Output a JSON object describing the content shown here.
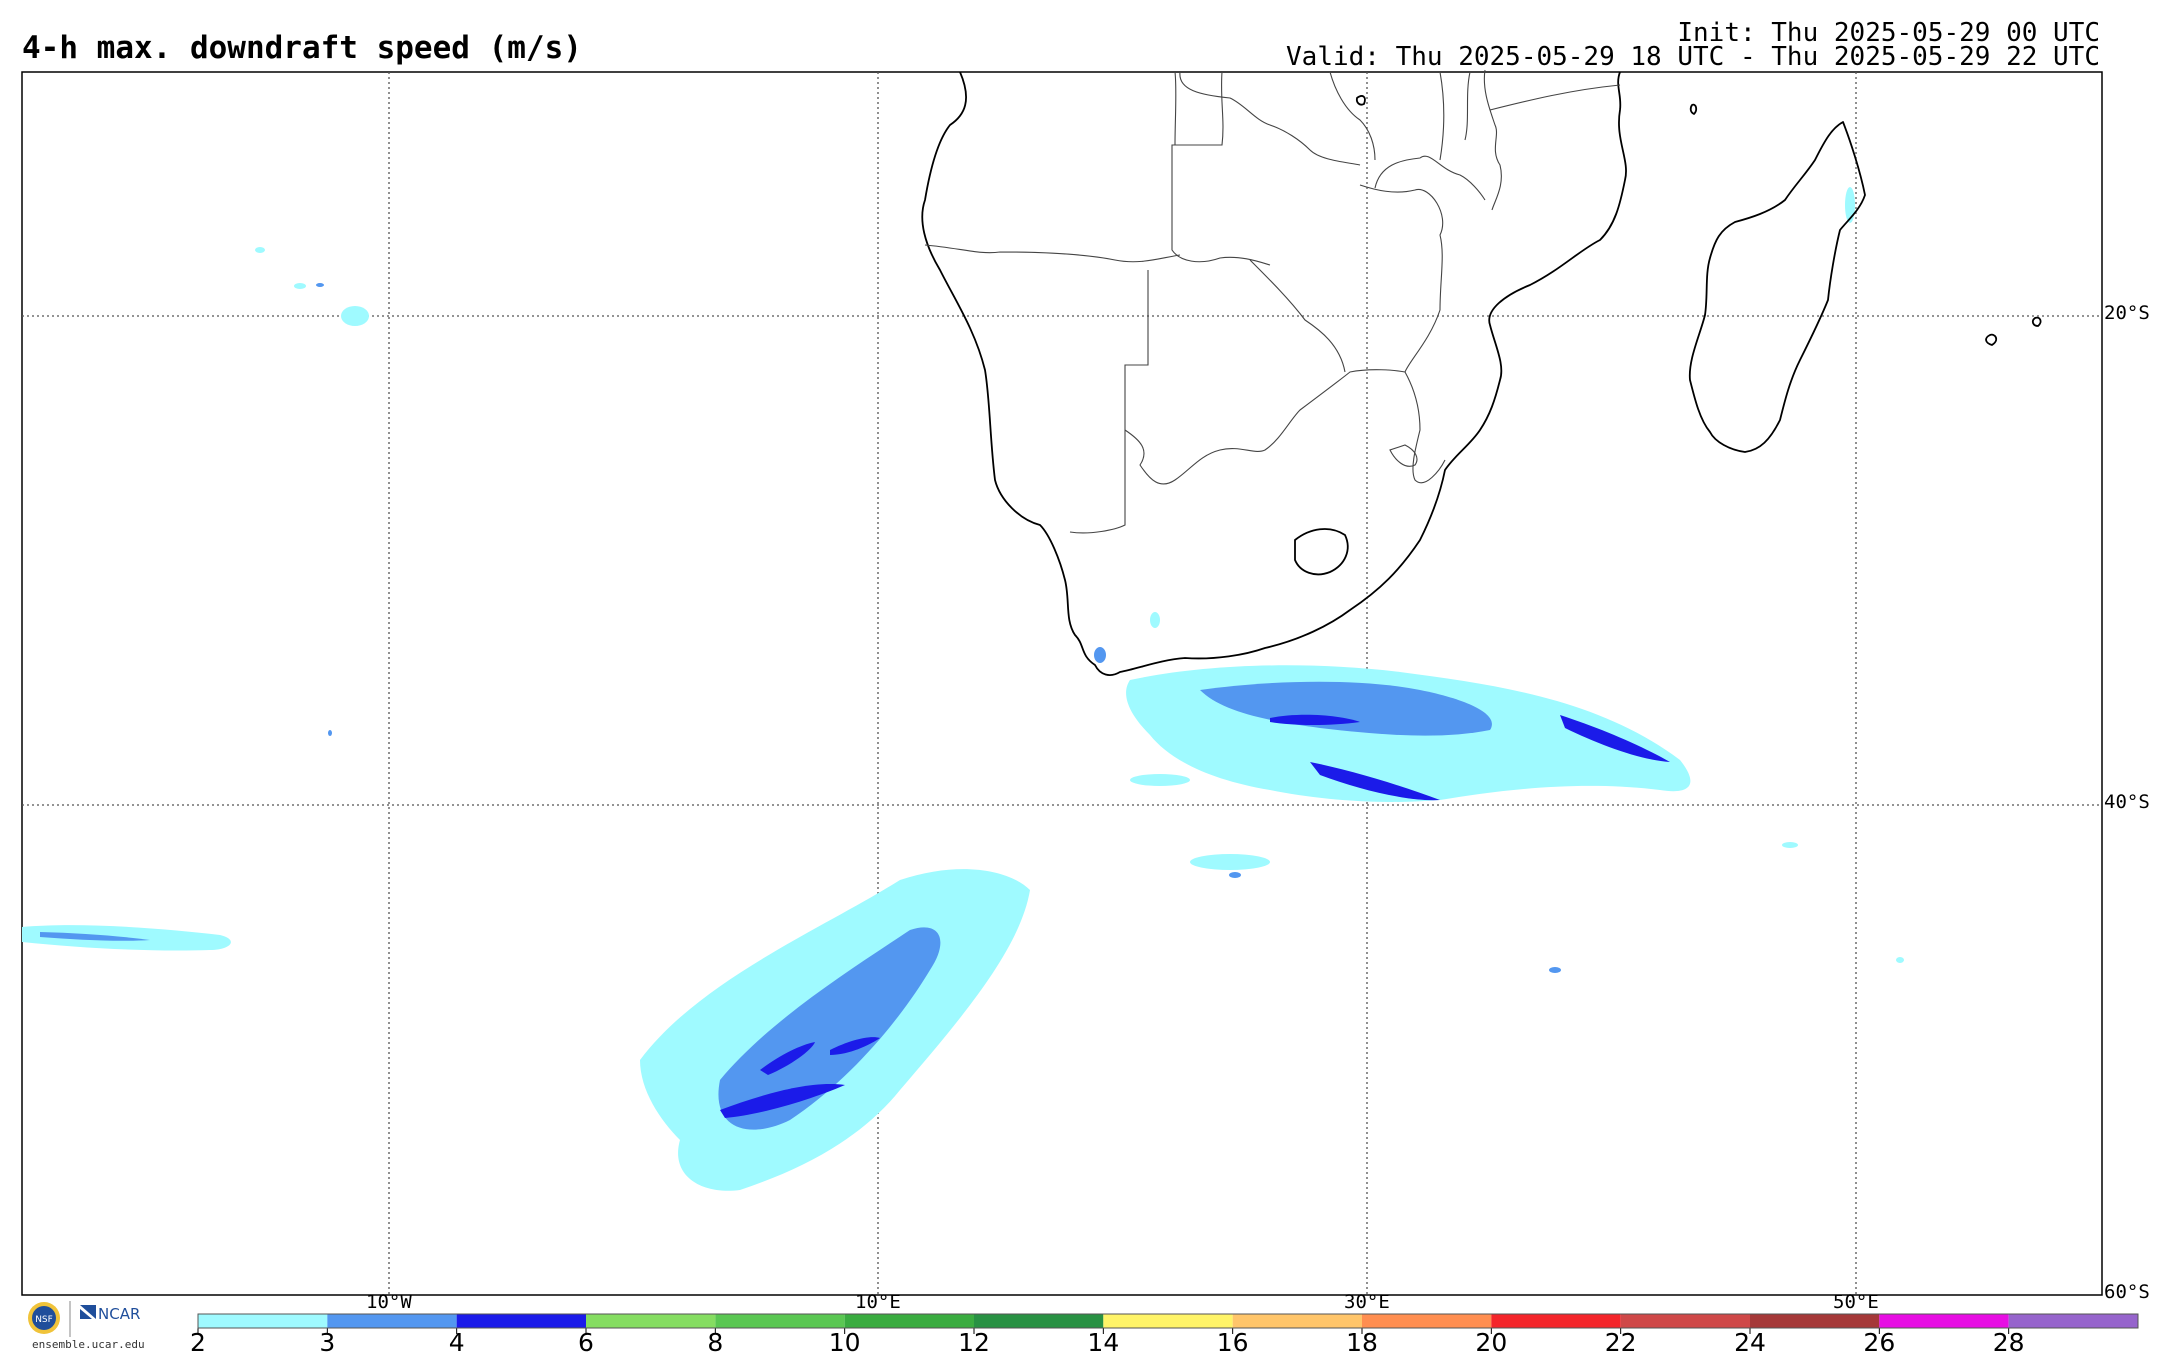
{
  "header": {
    "title": "4-h max. downdraft speed (m/s)",
    "init": "Init: Thu 2025-05-29 00 UTC",
    "valid": "Valid: Thu 2025-05-29 18 UTC - Thu 2025-05-29 22 UTC"
  },
  "axes": {
    "lon_labels": [
      "10°W",
      "10°E",
      "30°E",
      "50°E"
    ],
    "lat_labels": [
      "20°S",
      "40°S",
      "60°S"
    ]
  },
  "colorbar": {
    "ticks": [
      "2",
      "3",
      "4",
      "6",
      "8",
      "10",
      "12",
      "14",
      "16",
      "18",
      "20",
      "22",
      "24",
      "26",
      "28"
    ],
    "colors": [
      "#9ffaff",
      "#5397f0",
      "#1b1be9",
      "#85dd61",
      "#5ac752",
      "#3aac40",
      "#289143",
      "#fff468",
      "#ffc56a",
      "#ff8e50",
      "#f4252a",
      "#cf4848",
      "#a53838",
      "#e70ee3",
      "#9664cc"
    ]
  },
  "logo": {
    "org_text": "NCAR",
    "seal_text": "NSF",
    "url": "ensemble.ucar.edu"
  },
  "map": {
    "features": [
      "coastlines",
      "country-borders",
      "graticule"
    ],
    "field": "4-h max downdraft speed shading"
  }
}
